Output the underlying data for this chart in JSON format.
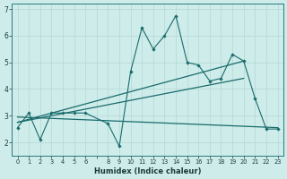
{
  "xlabel": "Humidex (Indice chaleur)",
  "bg_color": "#cdecea",
  "grid_color": "#b8dbd9",
  "line_color": "#1a6b6b",
  "xlim": [
    -0.5,
    23.5
  ],
  "ylim": [
    1.5,
    7.2
  ],
  "yticks": [
    2,
    3,
    4,
    5,
    6,
    7
  ],
  "xtick_labels": [
    "0",
    "1",
    "2",
    "3",
    "4",
    "5",
    "6",
    "",
    "8",
    "9",
    "10",
    "11",
    "12",
    "13",
    "14",
    "15",
    "16",
    "17",
    "18",
    "19",
    "20",
    "21",
    "22",
    "23"
  ],
  "xtick_positions": [
    0,
    1,
    2,
    3,
    4,
    5,
    6,
    7,
    8,
    9,
    10,
    11,
    12,
    13,
    14,
    15,
    16,
    17,
    18,
    19,
    20,
    21,
    22,
    23
  ],
  "series1_x": [
    0,
    1,
    2,
    3,
    4,
    5,
    6,
    8,
    9,
    10,
    11,
    12,
    13,
    14,
    15,
    16,
    17,
    18,
    19,
    20,
    21,
    22,
    23
  ],
  "series1_y": [
    2.55,
    3.1,
    2.1,
    3.1,
    3.1,
    3.1,
    3.1,
    2.7,
    1.85,
    4.65,
    6.3,
    5.5,
    6.0,
    6.75,
    5.0,
    4.9,
    4.3,
    4.4,
    5.3,
    5.05,
    3.65,
    2.5,
    2.5
  ],
  "trend1_x": [
    0,
    23
  ],
  "trend1_y": [
    2.95,
    2.55
  ],
  "trend2_x": [
    0,
    20
  ],
  "trend2_y": [
    2.75,
    5.05
  ],
  "trend3_x": [
    0,
    20
  ],
  "trend3_y": [
    2.75,
    4.4
  ]
}
